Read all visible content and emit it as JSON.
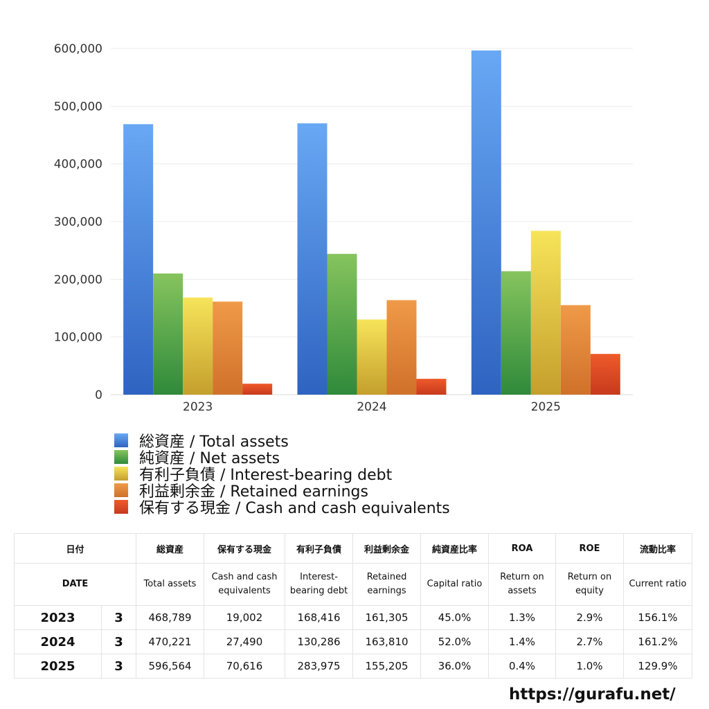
{
  "chart_data": {
    "type": "bar",
    "categories": [
      "2023",
      "2024",
      "2025"
    ],
    "ylim": [
      0,
      600000
    ],
    "yticks": [
      "0",
      "100,000",
      "200,000",
      "300,000",
      "400,000",
      "500,000",
      "600,000"
    ],
    "grid": true,
    "legend_position": "bottom",
    "series": [
      {
        "name": "総資産 / Total assets",
        "values": [
          468789,
          470221,
          596564
        ],
        "color_top": "#68a8f4",
        "color_bottom": "#2f63c1"
      },
      {
        "name": "純資産 / Net assets",
        "values": [
          210000,
          244000,
          214000
        ],
        "color_top": "#86c45e",
        "color_bottom": "#2f8a3a"
      },
      {
        "name": "有利子負債 / Interest-bearing debt",
        "values": [
          168416,
          130286,
          283975
        ],
        "color_top": "#f7e45a",
        "color_bottom": "#c49f2c"
      },
      {
        "name": "利益剰余金 / Retained earnings",
        "values": [
          161305,
          163810,
          155205
        ],
        "color_top": "#ef9a48",
        "color_bottom": "#d0712a"
      },
      {
        "name": "保有する現金 /  Cash and cash equivalents",
        "values": [
          19002,
          27490,
          70616
        ],
        "color_top": "#ee5a2a",
        "color_bottom": "#c73a1d"
      }
    ]
  },
  "table": {
    "header_ja": {
      "date": "日付",
      "total_assets": "総資産",
      "cash": "保有する現金",
      "debt": "有利子負債",
      "retained": "利益剰余金",
      "capital_ratio": "純資産比率",
      "roa": "ROA",
      "roe": "ROE",
      "current_ratio": "流動比率"
    },
    "header_en": {
      "date": "DATE",
      "total_assets": "Total assets",
      "cash": "Cash and cash equivalents",
      "debt": "Interest-bearing debt",
      "retained": "Retained earnings",
      "capital_ratio": "Capital ratio",
      "roa": "Return on assets",
      "roe": "Return on equity",
      "current_ratio": "Current ratio"
    },
    "rows": [
      {
        "year": "2023",
        "month": "3",
        "total_assets": "468,789",
        "cash": "19,002",
        "debt": "168,416",
        "retained": "161,305",
        "capital_ratio": "45.0%",
        "roa": "1.3%",
        "roe": "2.9%",
        "current_ratio": "156.1%"
      },
      {
        "year": "2024",
        "month": "3",
        "total_assets": "470,221",
        "cash": "27,490",
        "debt": "130,286",
        "retained": "163,810",
        "capital_ratio": "52.0%",
        "roa": "1.4%",
        "roe": "2.7%",
        "current_ratio": "161.2%"
      },
      {
        "year": "2025",
        "month": "3",
        "total_assets": "596,564",
        "cash": "70,616",
        "debt": "283,975",
        "retained": "155,205",
        "capital_ratio": "36.0%",
        "roa": "0.4%",
        "roe": "1.0%",
        "current_ratio": "129.9%"
      }
    ]
  },
  "footer": {
    "site": "https://gurafu.net/"
  }
}
